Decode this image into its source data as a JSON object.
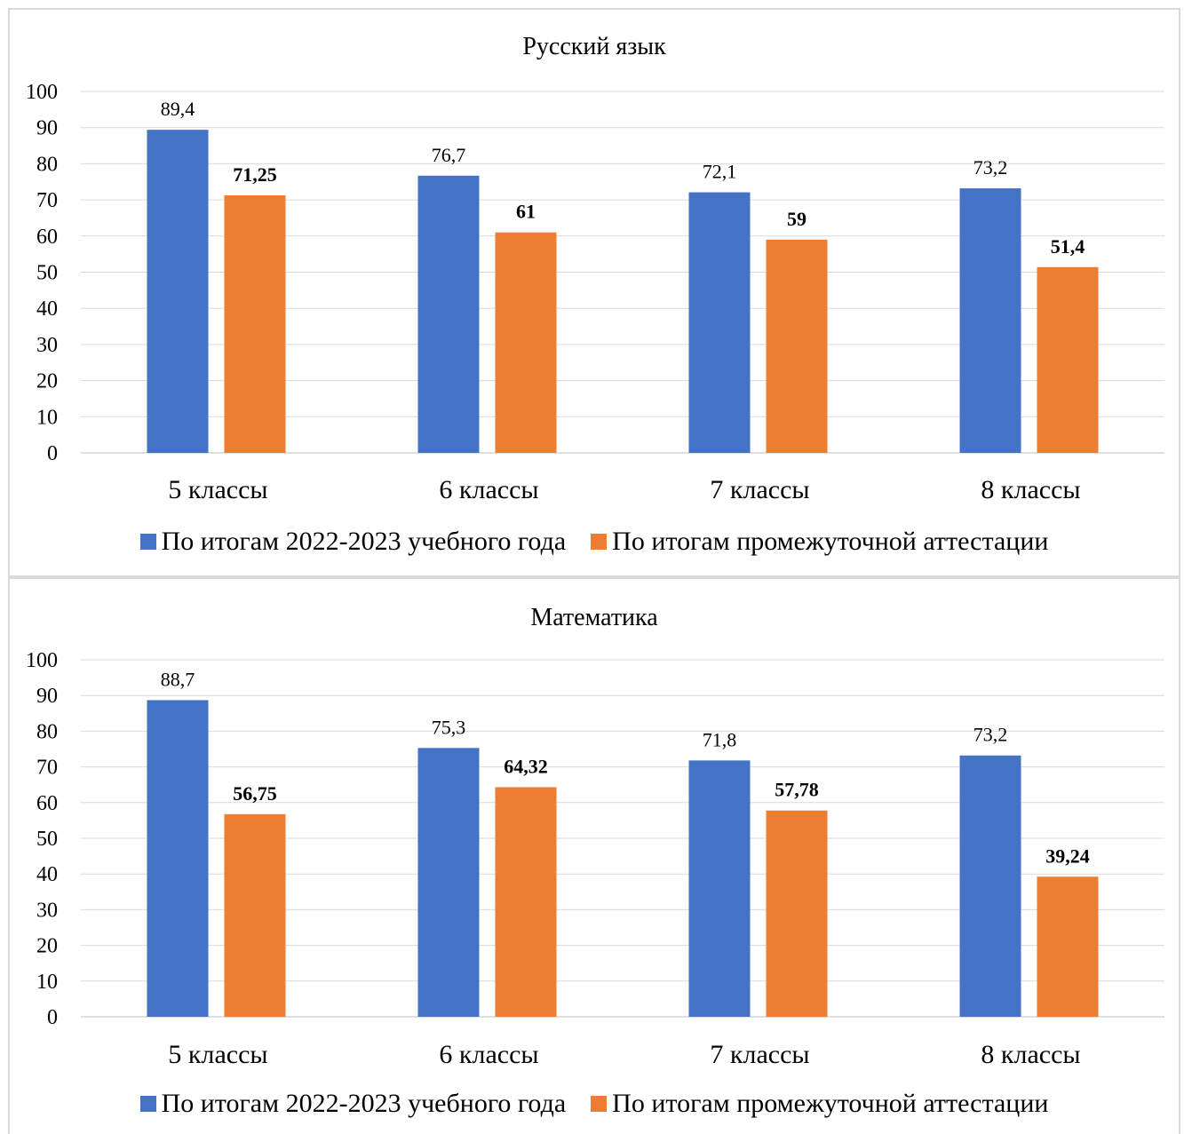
{
  "chart_data": [
    {
      "type": "bar",
      "title": "Русский язык",
      "categories": [
        "5 классы",
        "6 классы",
        "7 классы",
        "8 классы"
      ],
      "y_ticks": [
        "0",
        "10",
        "20",
        "30",
        "40",
        "50",
        "60",
        "70",
        "80",
        "90",
        "100"
      ],
      "ylim": [
        0,
        100
      ],
      "grid": true,
      "legend_position": "bottom",
      "series": [
        {
          "name": "По итогам 2022-2023 учебного года",
          "color": "#4472c4",
          "values": [
            89.4,
            76.7,
            72.1,
            73.2
          ],
          "labels": [
            "89,4",
            "76,7",
            "72,1",
            "73,2"
          ],
          "label_bold": false
        },
        {
          "name": "По итогам промежуточной аттестации",
          "color": "#ed7d31",
          "values": [
            71.25,
            61,
            59,
            51.4
          ],
          "labels": [
            "71,25",
            "61",
            "59",
            "51,4"
          ],
          "label_bold": true
        }
      ]
    },
    {
      "type": "bar",
      "title": "Математика",
      "categories": [
        "5 классы",
        "6 классы",
        "7 классы",
        "8 классы"
      ],
      "y_ticks": [
        "0",
        "10",
        "20",
        "30",
        "40",
        "50",
        "60",
        "70",
        "80",
        "90",
        "100"
      ],
      "ylim": [
        0,
        100
      ],
      "grid": true,
      "legend_position": "bottom",
      "series": [
        {
          "name": "По итогам 2022-2023 учебного года",
          "color": "#4472c4",
          "values": [
            88.7,
            75.3,
            71.8,
            73.2
          ],
          "labels": [
            "88,7",
            "75,3",
            "71,8",
            "73,2"
          ],
          "label_bold": false
        },
        {
          "name": "По итогам промежуточной аттестации",
          "color": "#ed7d31",
          "values": [
            56.75,
            64.32,
            57.78,
            39.24
          ],
          "labels": [
            "56,75",
            "64,32",
            "57,78",
            "39,24"
          ],
          "label_bold": true
        }
      ]
    }
  ]
}
